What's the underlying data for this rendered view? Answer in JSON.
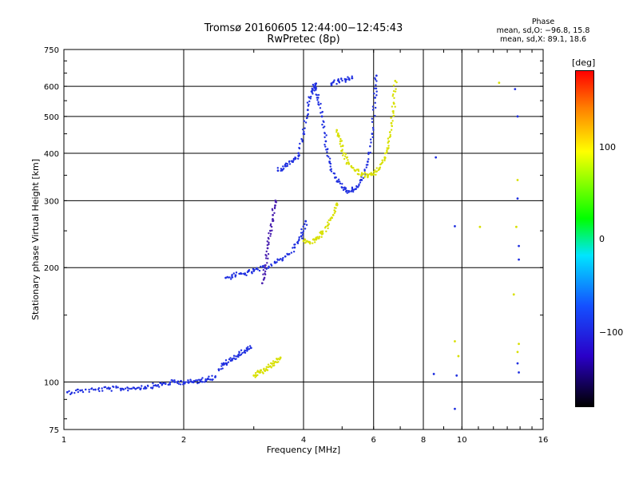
{
  "header": {
    "title_line1": "Tromsø 20160605 12:44:00−12:45:43",
    "title_line2": "RwPretec (8p)"
  },
  "stats": {
    "heading": "Phase",
    "o_line": "mean, sd,O: −96.8, 15.8",
    "x_line": "mean, sd,X:  89.1, 18.6"
  },
  "colorbar": {
    "unit": "[deg]",
    "ticks": [
      "100",
      "0",
      "−100"
    ],
    "colors": [
      "#ff0000",
      "#ff7f00",
      "#ffff00",
      "#00ff00",
      "#00e5ff",
      "#1450ff",
      "#2a00c8",
      "#000000"
    ]
  },
  "chart_data": {
    "type": "scatter",
    "xlabel": "Frequency [MHz]",
    "ylabel": "Stationary phase Virtual Height [km]",
    "xscale": "log",
    "yscale": "log",
    "xlim": [
      1,
      16
    ],
    "ylim": [
      75,
      750
    ],
    "xticks": [
      1,
      2,
      4,
      6,
      8,
      10,
      16
    ],
    "yticks": [
      75,
      100,
      200,
      300,
      400,
      500,
      600,
      750
    ],
    "grid": true,
    "traces": [
      {
        "color": "#2030e0",
        "points": [
          [
            1.02,
            94
          ],
          [
            1.1,
            95
          ],
          [
            1.2,
            95.5
          ],
          [
            1.3,
            96
          ],
          [
            1.4,
            96
          ],
          [
            1.5,
            96.5
          ],
          [
            1.6,
            97
          ],
          [
            1.7,
            98
          ],
          [
            1.8,
            99
          ],
          [
            1.9,
            100
          ],
          [
            2.0,
            100
          ],
          [
            2.1,
            100
          ],
          [
            2.2,
            101
          ],
          [
            2.3,
            102
          ],
          [
            2.4,
            103
          ]
        ]
      },
      {
        "color": "#2030e0",
        "points": [
          [
            2.45,
            108
          ],
          [
            2.55,
            112
          ],
          [
            2.65,
            115
          ],
          [
            2.75,
            118
          ],
          [
            2.85,
            121
          ],
          [
            2.95,
            123
          ]
        ]
      },
      {
        "color": "#d8e000",
        "points": [
          [
            3.0,
            104
          ],
          [
            3.1,
            106
          ],
          [
            3.2,
            107
          ],
          [
            3.3,
            110
          ],
          [
            3.4,
            113
          ],
          [
            3.5,
            116
          ]
        ]
      },
      {
        "color": "#2030e0",
        "points": [
          [
            2.55,
            188
          ],
          [
            2.7,
            191
          ],
          [
            2.85,
            193
          ],
          [
            3.0,
            196
          ],
          [
            3.2,
            200
          ],
          [
            3.4,
            206
          ],
          [
            3.6,
            214
          ],
          [
            3.8,
            226
          ],
          [
            3.95,
            242
          ],
          [
            4.05,
            265
          ]
        ]
      },
      {
        "color": "#4a20b0",
        "points": [
          [
            3.15,
            182
          ],
          [
            3.2,
            200
          ],
          [
            3.25,
            225
          ],
          [
            3.3,
            250
          ],
          [
            3.35,
            275
          ],
          [
            3.4,
            300
          ]
        ]
      },
      {
        "color": "#2030e0",
        "points": [
          [
            3.45,
            360
          ],
          [
            3.6,
            370
          ],
          [
            3.75,
            380
          ],
          [
            3.9,
            395
          ],
          [
            4.0,
            450
          ],
          [
            4.1,
            520
          ],
          [
            4.2,
            580
          ],
          [
            4.3,
            610
          ]
        ]
      },
      {
        "color": "#2030e0",
        "points": [
          [
            4.25,
            600
          ],
          [
            4.35,
            560
          ],
          [
            4.45,
            500
          ],
          [
            4.55,
            430
          ],
          [
            4.65,
            380
          ],
          [
            4.8,
            345
          ],
          [
            5.0,
            325
          ],
          [
            5.2,
            318
          ],
          [
            5.4,
            322
          ],
          [
            5.6,
            340
          ],
          [
            5.8,
            380
          ],
          [
            5.95,
            450
          ],
          [
            6.05,
            560
          ],
          [
            6.1,
            640
          ]
        ]
      },
      {
        "color": "#2030e0",
        "points": [
          [
            4.7,
            610
          ],
          [
            4.9,
            620
          ],
          [
            5.1,
            625
          ],
          [
            5.3,
            630
          ]
        ]
      },
      {
        "color": "#d8e000",
        "points": [
          [
            4.0,
            235
          ],
          [
            4.15,
            233
          ],
          [
            4.3,
            237
          ],
          [
            4.45,
            245
          ],
          [
            4.6,
            258
          ],
          [
            4.75,
            275
          ],
          [
            4.85,
            295
          ]
        ]
      },
      {
        "color": "#d8e000",
        "points": [
          [
            4.85,
            460
          ],
          [
            4.95,
            430
          ],
          [
            5.05,
            400
          ],
          [
            5.2,
            375
          ],
          [
            5.4,
            360
          ],
          [
            5.6,
            352
          ],
          [
            5.8,
            350
          ],
          [
            6.0,
            352
          ],
          [
            6.2,
            365
          ],
          [
            6.4,
            390
          ],
          [
            6.55,
            430
          ],
          [
            6.65,
            480
          ],
          [
            6.75,
            540
          ],
          [
            6.8,
            620
          ]
        ]
      },
      {
        "color": "#2030e0",
        "points": [
          [
            8.6,
            390
          ],
          [
            8.5,
            105
          ],
          [
            9.6,
            257
          ],
          [
            9.6,
            85
          ],
          [
            9.7,
            104
          ],
          [
            13.6,
            590
          ],
          [
            13.8,
            500
          ],
          [
            13.8,
            304
          ],
          [
            13.9,
            228
          ],
          [
            13.9,
            210
          ],
          [
            13.8,
            112
          ],
          [
            13.9,
            106
          ]
        ]
      },
      {
        "color": "#d8e000",
        "points": [
          [
            9.6,
            128
          ],
          [
            12.4,
            613
          ],
          [
            13.5,
            170
          ],
          [
            13.7,
            256
          ],
          [
            13.8,
            340
          ],
          [
            13.8,
            120
          ],
          [
            13.9,
            126
          ],
          [
            9.8,
            117
          ],
          [
            11.1,
            256
          ]
        ]
      }
    ]
  }
}
